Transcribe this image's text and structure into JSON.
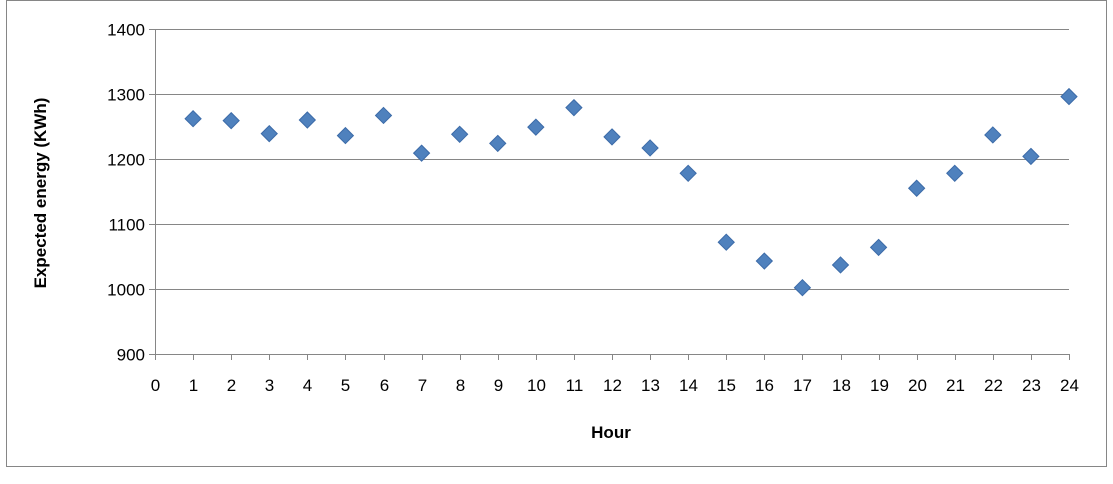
{
  "chart_data": {
    "type": "scatter",
    "title": "",
    "xlabel": "Hour",
    "ylabel": "Expected energy (KWh)",
    "xlim": [
      0,
      24
    ],
    "ylim": [
      900,
      1400
    ],
    "x_ticks": [
      0,
      1,
      2,
      3,
      4,
      5,
      6,
      7,
      8,
      9,
      10,
      11,
      12,
      13,
      14,
      15,
      16,
      17,
      18,
      19,
      20,
      21,
      22,
      23,
      24
    ],
    "y_ticks": [
      900,
      1000,
      1100,
      1200,
      1300,
      1400
    ],
    "grid": "horizontal",
    "legend": "none",
    "marker": "diamond",
    "colors": {
      "marker": "#4F81BD",
      "marker_edge": "#3C6BA8",
      "grid": "#868686",
      "axis": "#868686",
      "frame": "#868686"
    },
    "series": [
      {
        "x": [
          1,
          2,
          3,
          4,
          5,
          6,
          7,
          8,
          9,
          10,
          11,
          12,
          13,
          14,
          15,
          16,
          17,
          18,
          19,
          20,
          21,
          22,
          23,
          24
        ],
        "y": [
          1262,
          1259,
          1239,
          1260,
          1236,
          1267,
          1209,
          1238,
          1224,
          1249,
          1279,
          1234,
          1217,
          1178,
          1072,
          1043,
          1002,
          1037,
          1064,
          1155,
          1178,
          1237,
          1204,
          1296
        ]
      }
    ]
  }
}
